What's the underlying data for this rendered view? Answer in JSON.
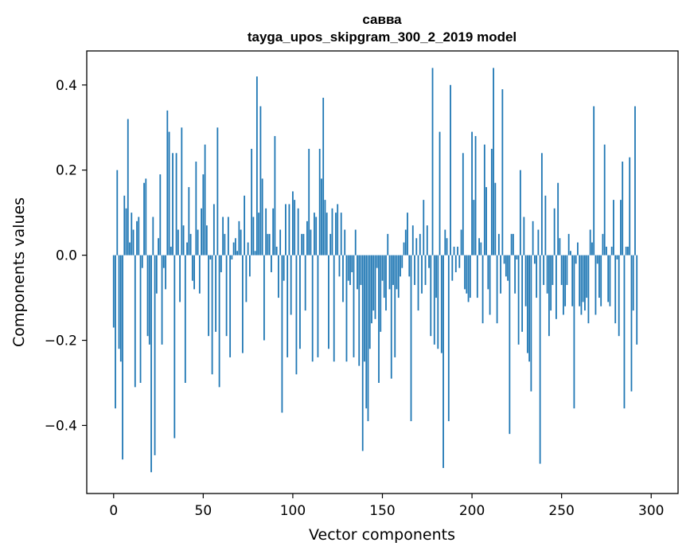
{
  "chart_data": {
    "type": "bar",
    "title": "савва",
    "subtitle": "tayga_upos_skipgram_300_2_2019 model",
    "xlabel": "Vector components",
    "ylabel": "Components values",
    "xlim": [
      -15,
      315
    ],
    "ylim": [
      -0.56,
      0.48
    ],
    "xticks": [
      0,
      50,
      100,
      150,
      200,
      250,
      300
    ],
    "xtick_labels": [
      "0",
      "50",
      "100",
      "150",
      "200",
      "250",
      "300"
    ],
    "yticks": [
      -0.4,
      -0.2,
      0.0,
      0.2,
      0.4
    ],
    "ytick_labels": [
      "−0.4",
      "−0.2",
      "0.0",
      "0.2",
      "0.4"
    ],
    "grid": false,
    "bar_color": "#1f77b4",
    "x_start": 0,
    "values": [
      -0.17,
      -0.36,
      0.2,
      -0.22,
      -0.25,
      -0.48,
      0.14,
      0.11,
      0.32,
      0.03,
      0.1,
      0.06,
      -0.31,
      0.08,
      0.09,
      -0.3,
      -0.03,
      0.17,
      0.18,
      -0.19,
      -0.21,
      -0.51,
      0.09,
      -0.47,
      -0.09,
      0.04,
      0.19,
      -0.21,
      -0.03,
      -0.08,
      0.34,
      0.29,
      0.02,
      0.24,
      -0.43,
      0.24,
      0.06,
      -0.11,
      0.3,
      0.07,
      -0.3,
      0.03,
      0.16,
      0.05,
      -0.06,
      -0.08,
      0.22,
      0.06,
      -0.09,
      0.11,
      0.19,
      0.26,
      0.07,
      -0.19,
      -0.01,
      -0.28,
      0.12,
      -0.18,
      0.3,
      -0.31,
      -0.04,
      0.09,
      0.05,
      -0.19,
      0.09,
      -0.24,
      -0.01,
      0.03,
      0.04,
      0.01,
      0.08,
      0.06,
      -0.23,
      0.14,
      -0.11,
      0.03,
      -0.05,
      0.25,
      0.09,
      0.01,
      0.42,
      0.1,
      0.35,
      0.18,
      -0.2,
      0.11,
      0.05,
      0.05,
      -0.04,
      0.11,
      0.28,
      0.02,
      -0.1,
      0.06,
      -0.37,
      -0.06,
      0.12,
      -0.24,
      0.12,
      -0.14,
      0.15,
      0.13,
      -0.28,
      0.11,
      -0.22,
      0.05,
      0.05,
      -0.13,
      0.08,
      0.25,
      0.06,
      -0.25,
      0.1,
      0.09,
      -0.24,
      0.25,
      0.18,
      0.37,
      0.13,
      0.1,
      -0.22,
      0.05,
      0.11,
      -0.25,
      0.1,
      0.12,
      -0.05,
      0.1,
      -0.11,
      0.06,
      -0.25,
      -0.06,
      -0.07,
      -0.04,
      -0.24,
      0.06,
      -0.08,
      -0.26,
      -0.07,
      -0.46,
      -0.25,
      -0.36,
      -0.39,
      -0.22,
      -0.16,
      -0.13,
      -0.15,
      -0.03,
      -0.3,
      -0.18,
      -0.06,
      -0.1,
      -0.13,
      0.05,
      -0.08,
      -0.29,
      -0.07,
      -0.24,
      -0.08,
      -0.1,
      -0.05,
      -0.03,
      0.03,
      0.06,
      0.1,
      -0.05,
      -0.39,
      0.07,
      -0.07,
      0.04,
      -0.13,
      0.05,
      -0.09,
      0.13,
      -0.07,
      0.07,
      -0.03,
      -0.19,
      0.44,
      -0.21,
      -0.1,
      -0.22,
      0.29,
      -0.23,
      -0.5,
      0.06,
      0.04,
      -0.39,
      0.4,
      -0.06,
      0.02,
      -0.04,
      0.02,
      -0.03,
      0.06,
      0.24,
      -0.08,
      -0.09,
      -0.11,
      -0.1,
      0.29,
      0.13,
      0.28,
      -0.1,
      0.04,
      0.03,
      -0.16,
      0.26,
      0.16,
      -0.08,
      -0.14,
      0.25,
      0.44,
      0.17,
      -0.16,
      0.05,
      -0.09,
      0.39,
      -0.02,
      -0.05,
      -0.06,
      -0.42,
      0.05,
      0.05,
      -0.09,
      -0.01,
      -0.21,
      0.2,
      -0.18,
      0.09,
      -0.12,
      -0.23,
      -0.25,
      -0.32,
      0.08,
      -0.02,
      -0.1,
      0.06,
      -0.49,
      0.24,
      -0.07,
      0.14,
      -0.09,
      -0.19,
      -0.13,
      -0.07,
      0.11,
      -0.15,
      0.17,
      0.04,
      -0.07,
      -0.14,
      -0.12,
      -0.07,
      0.05,
      0.01,
      -0.12,
      -0.36,
      -0.02,
      0.03,
      -0.12,
      -0.14,
      -0.11,
      -0.13,
      -0.1,
      -0.16,
      0.06,
      0.03,
      0.35,
      -0.14,
      -0.02,
      -0.1,
      -0.12,
      0.05,
      0.26,
      0.02,
      -0.11,
      -0.12,
      0.02,
      0.13,
      -0.16,
      -0.01,
      -0.19,
      0.13,
      0.22,
      -0.36,
      0.02,
      0.02,
      0.23,
      -0.32,
      -0.13,
      0.35,
      -0.21
    ]
  }
}
